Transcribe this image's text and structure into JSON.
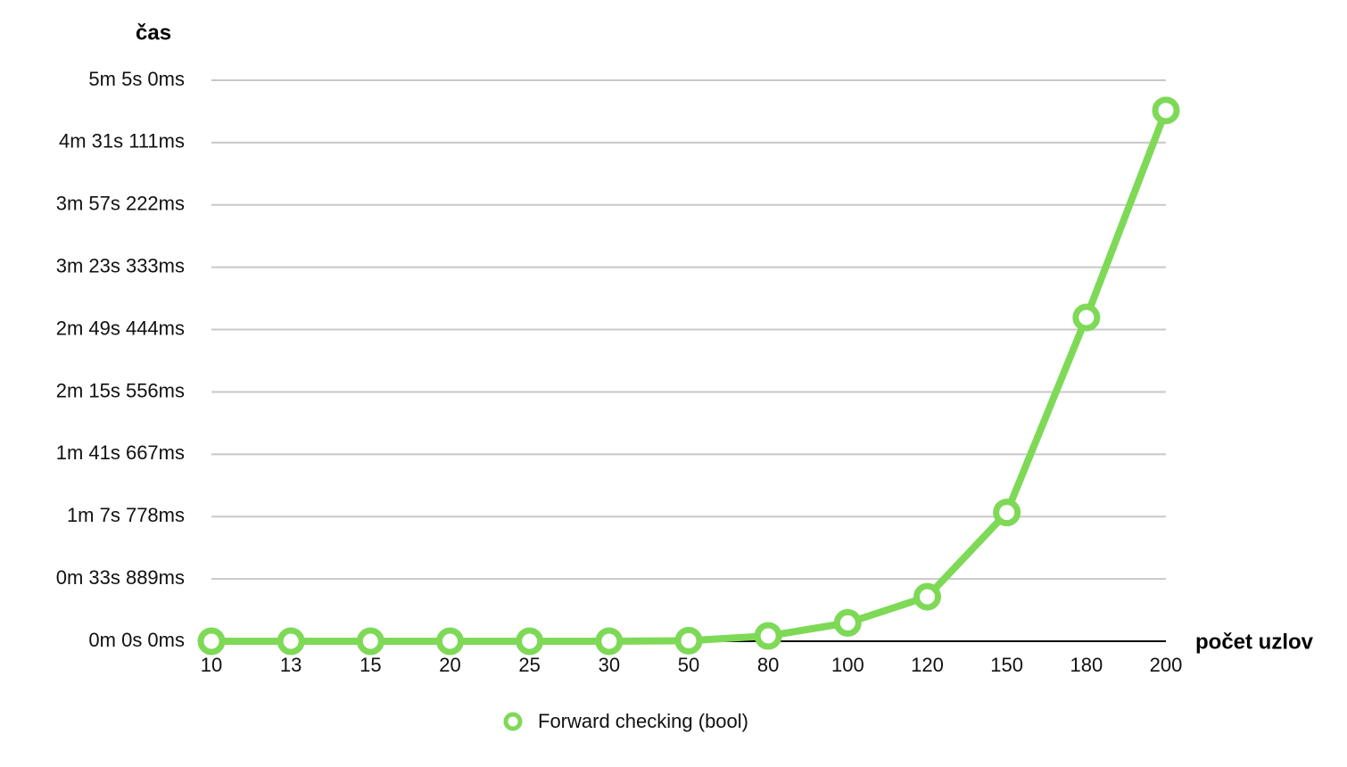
{
  "chart_data": {
    "type": "line",
    "ylabel": "čas",
    "xlabel": "počet uzlov",
    "categories": [
      "10",
      "13",
      "15",
      "20",
      "25",
      "30",
      "50",
      "80",
      "100",
      "120",
      "150",
      "180",
      "200"
    ],
    "y_tick_labels": [
      "0m 0s 0ms",
      "0m 33s 889ms",
      "1m 7s 778ms",
      "1m 41s 667ms",
      "2m 15s 556ms",
      "2m 49s 444ms",
      "3m 23s 333ms",
      "3m 57s 222ms",
      "4m 31s 111ms",
      "5m 5s 0ms"
    ],
    "ylim_ms": [
      0,
      305000
    ],
    "y_tick_step_ms": 33888.9,
    "series": [
      {
        "name": "Forward checking (bool)",
        "color": "#7ed957",
        "values_ms": [
          0,
          0,
          0,
          0,
          0,
          0,
          300,
          2900,
          10000,
          24200,
          70000,
          176000,
          288600
        ]
      }
    ],
    "grid": true,
    "legend_position": "bottom"
  }
}
